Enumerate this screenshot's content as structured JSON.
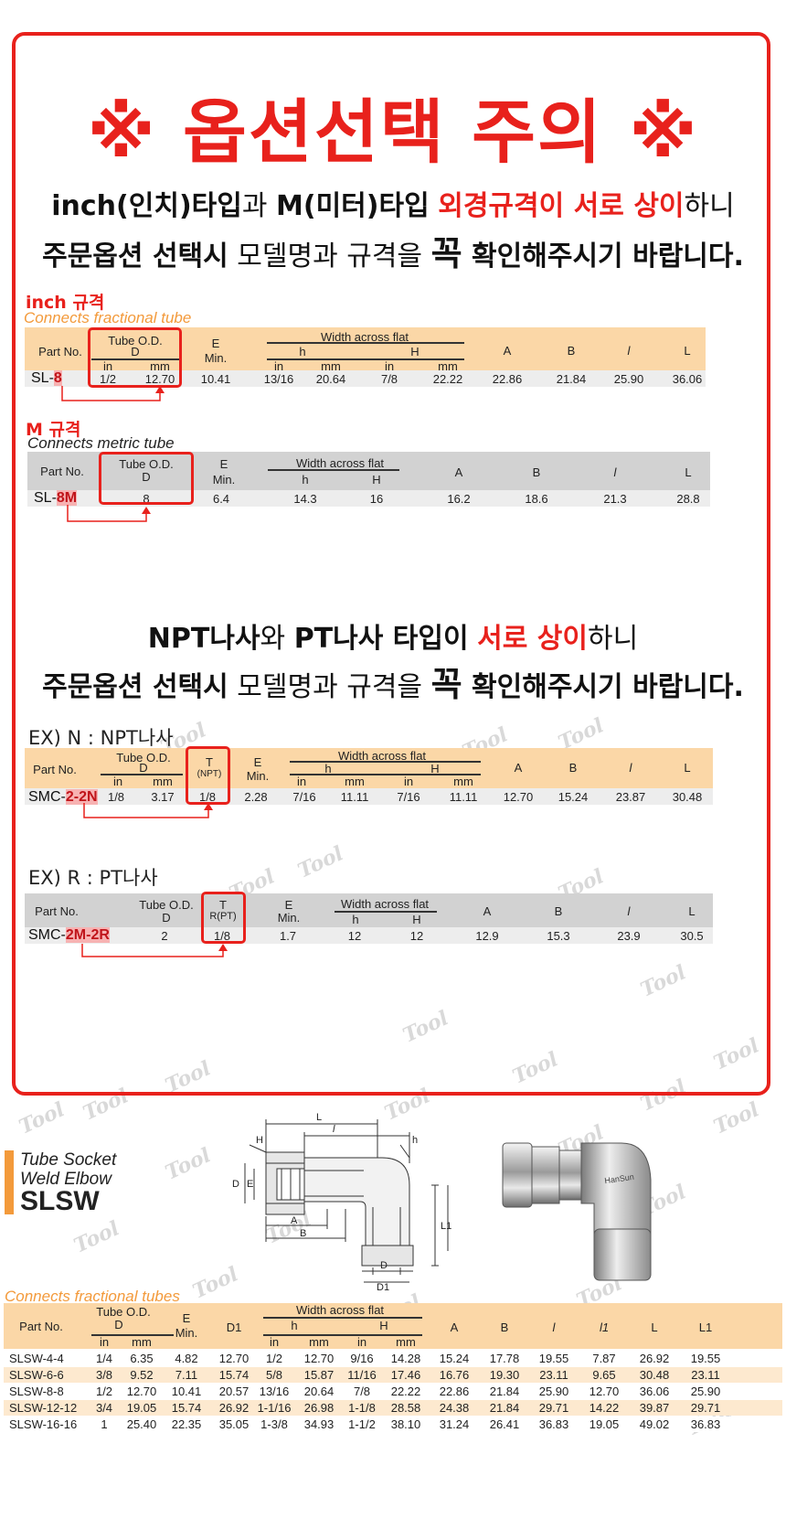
{
  "notice": {
    "title": "※ 옵션선택 주의 ※",
    "line1": {
      "a": "inch(인치)타입",
      "b": "과 ",
      "c": "M(미터)타입",
      "d": " ",
      "e": "외경규격이 서로 상이",
      "f": "하니"
    },
    "line2": {
      "a": "주문옵션 선택시",
      "b": " 모델명과 규격을 ",
      "c": "꼭",
      "d": " 확인해주시기 바랍니다."
    },
    "line3": {
      "a": "NPT나사",
      "b": "와 ",
      "c": "PT나사 타입이",
      "d": " ",
      "e": "서로 상이",
      "f": "하니"
    },
    "line4": {
      "a": "주문옵션 선택시",
      "b": " 모델명과 규격을 ",
      "c": "꼭",
      "d": " 확인해주시기 바랍니다."
    }
  },
  "inch_section": {
    "label": "inch 규격",
    "subtitle": "Connects fractional tube",
    "headers": {
      "part": "Part No.",
      "tube": "Tube  O.D.",
      "d": "D",
      "in": "in",
      "mm": "mm",
      "e": "E",
      "min": "Min.",
      "waf": "Width across flat",
      "h": "h",
      "H": "H",
      "in2": "in",
      "mm2": "mm",
      "in3": "in",
      "mm3": "mm",
      "a": "A",
      "b": "B",
      "l": "l",
      "L": "L"
    },
    "row": {
      "part_prefix": "SL-",
      "part_hi": "8",
      "in": "1/2",
      "mm": "12.70",
      "e": "10.41",
      "h_in": "13/16",
      "h_mm": "20.64",
      "H_in": "7/8",
      "H_mm": "22.22",
      "a": "22.86",
      "b": "21.84",
      "l": "25.90",
      "L": "36.06"
    }
  },
  "metric_section": {
    "label": "M 규격",
    "subtitle": "Connects metric tube",
    "headers": {
      "part": "Part No.",
      "tube": "Tube  O.D.",
      "d": "D",
      "e": "E",
      "min": "Min.",
      "waf": "Width across flat",
      "h": "h",
      "H": "H",
      "a": "A",
      "b": "B",
      "l": "l",
      "L": "L"
    },
    "row": {
      "part_prefix": "SL-",
      "part_hi": "8M",
      "d": "8",
      "e": "6.4",
      "h": "14.3",
      "H": "16",
      "a": "16.2",
      "b": "18.6",
      "l": "21.3",
      "L": "28.8"
    }
  },
  "npt_section": {
    "label": "EX) N : NPT나사",
    "headers": {
      "part": "Part  No.",
      "tube": "Tube  O.D.",
      "d": "D",
      "in": "in",
      "mm": "mm",
      "t": "T",
      "tsub": "(NPT)",
      "e": "E",
      "min": "Min.",
      "waf": "Width across flat",
      "h": "h",
      "H": "H",
      "in2": "in",
      "mm2": "mm",
      "in3": "in",
      "mm3": "mm",
      "a": "A",
      "b": "B",
      "l": "l",
      "L": "L"
    },
    "row": {
      "part_prefix": "SMC-",
      "part_hi": "2-2N",
      "in": "1/8",
      "mm": "3.17",
      "t": "1/8",
      "e": "2.28",
      "h_in": "7/16",
      "h_mm": "11.11",
      "H_in": "7/16",
      "H_mm": "11.11",
      "a": "12.70",
      "b": "15.24",
      "l": "23.87",
      "L": "30.48"
    }
  },
  "pt_section": {
    "label": "EX) R : PT나사",
    "headers": {
      "part": "Part  No.",
      "tube": "Tube  O.D.",
      "d": "D",
      "t": "T",
      "tsub": "R(PT)",
      "e": "E",
      "min": "Min.",
      "waf": "Width across flat",
      "h": "h",
      "H": "H",
      "a": "A",
      "b": "B",
      "l": "l",
      "L": "L"
    },
    "row": {
      "part_prefix": "SMC-",
      "part_hi": "2M-2R",
      "d": "2",
      "t": "1/8",
      "e": "1.7",
      "h": "12",
      "H": "12",
      "a": "12.9",
      "b": "15.3",
      "l": "23.9",
      "L": "30.5"
    }
  },
  "product": {
    "line1": "Tube Socket",
    "line2": "Weld Elbow",
    "code": "SLSW",
    "subtitle": "Connects fractional tubes",
    "diagram_labels": {
      "L": "L",
      "l": "l",
      "h": "h",
      "H": "H",
      "D": "D",
      "E": "E",
      "A": "A",
      "B": "B",
      "L1": "L1",
      "D1": "D1"
    },
    "photo_brand": "HanSun",
    "headers": {
      "part": "Part  No.",
      "tube": "Tube  O.D.",
      "d": "D",
      "in": "in",
      "mm": "mm",
      "e": "E",
      "min": "Min.",
      "d1": "D1",
      "waf": "Width across flat",
      "h": "h",
      "H": "H",
      "in2": "in",
      "mm2": "mm",
      "in3": "in",
      "mm3": "mm",
      "a": "A",
      "b": "B",
      "l": "l",
      "l1": "l1",
      "L": "L",
      "L1": "L1"
    },
    "rows": [
      [
        "SLSW-4-4",
        "1/4",
        "6.35",
        "4.82",
        "12.70",
        "1/2",
        "12.70",
        "9/16",
        "14.28",
        "15.24",
        "17.78",
        "19.55",
        "7.87",
        "26.92",
        "19.55"
      ],
      [
        "SLSW-6-6",
        "3/8",
        "9.52",
        "7.11",
        "15.74",
        "5/8",
        "15.87",
        "11/16",
        "17.46",
        "16.76",
        "19.30",
        "23.11",
        "9.65",
        "30.48",
        "23.11"
      ],
      [
        "SLSW-8-8",
        "1/2",
        "12.70",
        "10.41",
        "20.57",
        "13/16",
        "20.64",
        "7/8",
        "22.22",
        "22.86",
        "21.84",
        "25.90",
        "12.70",
        "36.06",
        "25.90"
      ],
      [
        "SLSW-12-12",
        "3/4",
        "19.05",
        "15.74",
        "26.92",
        "1-1/16",
        "26.98",
        "1-1/8",
        "28.58",
        "24.38",
        "21.84",
        "29.71",
        "14.22",
        "39.87",
        "29.71"
      ],
      [
        "SLSW-16-16",
        "1",
        "25.40",
        "22.35",
        "35.05",
        "1-3/8",
        "34.93",
        "1-1/2",
        "38.10",
        "31.24",
        "26.41",
        "36.83",
        "19.05",
        "49.02",
        "36.83"
      ]
    ]
  },
  "watermark": "Tool"
}
